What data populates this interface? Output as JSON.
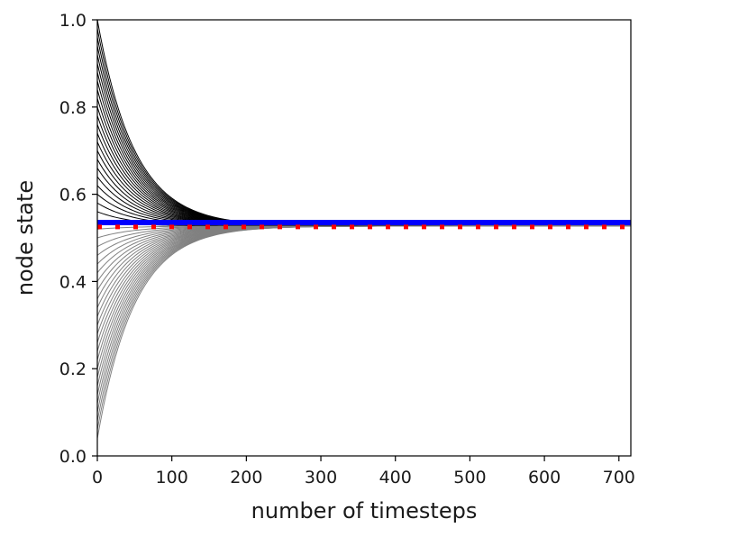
{
  "chart_data": {
    "type": "line",
    "title": "",
    "xlabel": "number of timesteps",
    "ylabel": "node state",
    "xlim": [
      0,
      716
    ],
    "ylim": [
      0.0,
      1.0
    ],
    "xticks": [
      0,
      100,
      200,
      300,
      400,
      500,
      600,
      700
    ],
    "yticks": [
      0.0,
      0.2,
      0.4,
      0.6,
      0.8,
      1.0
    ],
    "xtick_labels": [
      "0",
      "100",
      "200",
      "300",
      "400",
      "500",
      "600",
      "700"
    ],
    "ytick_labels": [
      "0.0",
      "0.2",
      "0.4",
      "0.6",
      "0.8",
      "1.0"
    ],
    "grid": false,
    "legend": "none",
    "decay_rate": 0.02,
    "converged_value": 0.527,
    "upper_group": {
      "color": "#000000",
      "initial_values": [
        1.0,
        0.98,
        0.96,
        0.94,
        0.92,
        0.9,
        0.88,
        0.86,
        0.84,
        0.82,
        0.8,
        0.78,
        0.76,
        0.74,
        0.72,
        0.7,
        0.68,
        0.66,
        0.64,
        0.62,
        0.6,
        0.58,
        0.56,
        0.54
      ]
    },
    "lower_group": {
      "color": "#808080",
      "initial_values": [
        0.52,
        0.5,
        0.48,
        0.46,
        0.44,
        0.42,
        0.4,
        0.38,
        0.36,
        0.34,
        0.32,
        0.3,
        0.28,
        0.26,
        0.24,
        0.22,
        0.2,
        0.18,
        0.16,
        0.14,
        0.12,
        0.1,
        0.08,
        0.06,
        0.04
      ]
    },
    "reference_lines": [
      {
        "style": "solid",
        "color": "#0000ff",
        "y": 0.535
      },
      {
        "style": "dotted",
        "color": "#ff0000",
        "y": 0.525
      }
    ]
  }
}
